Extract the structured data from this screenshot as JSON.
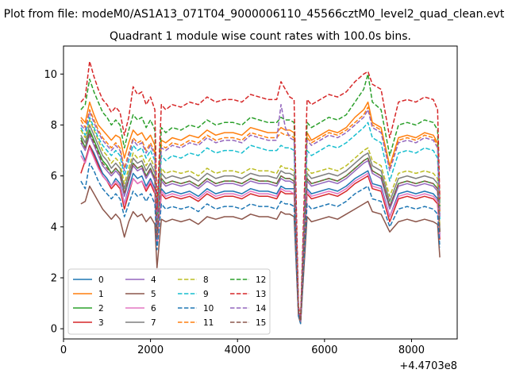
{
  "chart_data": {
    "type": "line",
    "suptitle": "Plot from file: modeM0/AS1A13_071T04_9000006110_45566cztM0_level2_quad_clean.evt",
    "title": "Quadrant 1 module wise count rates with 100.0s bins.",
    "xlabel": "",
    "ylabel": "",
    "x_offset_label": "+4.4703e8",
    "xlim": [
      0,
      9050
    ],
    "ylim": [
      -0.4,
      11.1
    ],
    "xticks": [
      0,
      2000,
      4000,
      6000,
      8000
    ],
    "xtick_labels": [
      "0",
      "2000",
      "4000",
      "6000",
      "8000"
    ],
    "yticks": [
      0,
      2,
      4,
      6,
      8,
      10
    ],
    "ytick_labels": [
      "0",
      "2",
      "4",
      "6",
      "8",
      "10"
    ],
    "legend_position": "lower-left",
    "legend_columns": 4,
    "x": [
      400,
      500,
      600,
      700,
      800,
      900,
      1000,
      1100,
      1200,
      1300,
      1400,
      1500,
      1600,
      1700,
      1800,
      1900,
      2000,
      2100,
      2150,
      2250,
      2350,
      2500,
      2700,
      2900,
      3100,
      3300,
      3500,
      3700,
      3900,
      4100,
      4300,
      4500,
      4700,
      4900,
      5000,
      5100,
      5200,
      5300,
      5400,
      5450,
      5600,
      5700,
      5900,
      6100,
      6300,
      6500,
      6700,
      6900,
      7000,
      7100,
      7300,
      7500,
      7700,
      7900,
      8100,
      8300,
      8500,
      8600,
      8650
    ],
    "series": [
      {
        "name": "0",
        "color": "#1f77b4",
        "dash": "solid",
        "values": [
          7.0,
          6.6,
          7.2,
          6.9,
          6.5,
          6.1,
          5.9,
          5.6,
          5.9,
          5.7,
          4.9,
          5.5,
          6.1,
          5.9,
          6.0,
          5.6,
          5.9,
          5.5,
          3.4,
          5.5,
          5.3,
          5.4,
          5.3,
          5.4,
          5.2,
          5.5,
          5.3,
          5.4,
          5.4,
          5.3,
          5.5,
          5.4,
          5.4,
          5.3,
          5.6,
          5.5,
          5.5,
          5.5,
          0.6,
          0.3,
          5.5,
          5.3,
          5.4,
          5.5,
          5.4,
          5.6,
          5.9,
          6.1,
          6.2,
          5.7,
          5.6,
          4.4,
          5.3,
          5.4,
          5.3,
          5.4,
          5.3,
          5.1,
          3.6
        ]
      },
      {
        "name": "1",
        "color": "#ff7f0e",
        "dash": "solid",
        "values": [
          8.3,
          8.1,
          8.9,
          8.4,
          8.0,
          7.8,
          7.6,
          7.4,
          7.6,
          7.5,
          6.7,
          7.3,
          7.8,
          7.6,
          7.7,
          7.4,
          7.6,
          7.2,
          3.8,
          7.4,
          7.3,
          7.5,
          7.4,
          7.6,
          7.5,
          7.8,
          7.6,
          7.7,
          7.7,
          7.6,
          7.9,
          7.8,
          7.7,
          7.7,
          7.9,
          7.8,
          7.8,
          7.7,
          0.7,
          0.3,
          7.7,
          7.4,
          7.6,
          7.8,
          7.7,
          7.9,
          8.3,
          8.6,
          8.9,
          8.1,
          7.9,
          6.4,
          7.5,
          7.6,
          7.5,
          7.7,
          7.6,
          7.3,
          4.6
        ]
      },
      {
        "name": "2",
        "color": "#2ca02c",
        "dash": "solid",
        "values": [
          7.5,
          7.1,
          7.8,
          7.4,
          7.0,
          6.6,
          6.4,
          6.1,
          6.3,
          6.1,
          5.3,
          5.9,
          6.5,
          6.3,
          6.4,
          6.0,
          6.3,
          5.9,
          3.6,
          5.9,
          5.7,
          5.8,
          5.7,
          5.8,
          5.6,
          5.9,
          5.7,
          5.8,
          5.8,
          5.7,
          5.9,
          5.8,
          5.8,
          5.7,
          6.0,
          5.9,
          5.9,
          5.8,
          0.6,
          0.3,
          5.9,
          5.7,
          5.8,
          5.9,
          5.8,
          6.0,
          6.3,
          6.6,
          6.7,
          6.2,
          6.0,
          4.8,
          5.7,
          5.8,
          5.7,
          5.8,
          5.7,
          5.5,
          3.8
        ]
      },
      {
        "name": "3",
        "color": "#d62728",
        "dash": "solid",
        "values": [
          6.1,
          6.6,
          7.2,
          6.8,
          6.4,
          6.0,
          5.8,
          5.5,
          5.7,
          5.5,
          4.7,
          5.3,
          5.9,
          5.7,
          5.8,
          5.4,
          5.7,
          5.3,
          3.3,
          5.3,
          5.1,
          5.2,
          5.1,
          5.2,
          5.0,
          5.3,
          5.1,
          5.2,
          5.2,
          5.1,
          5.3,
          5.2,
          5.2,
          5.1,
          5.4,
          5.3,
          5.3,
          5.3,
          0.6,
          0.3,
          5.3,
          5.1,
          5.2,
          5.3,
          5.2,
          5.4,
          5.7,
          5.9,
          6.0,
          5.5,
          5.4,
          4.2,
          5.1,
          5.2,
          5.1,
          5.2,
          5.1,
          4.9,
          3.5
        ]
      },
      {
        "name": "4",
        "color": "#9467bd",
        "dash": "solid",
        "values": [
          7.3,
          7.0,
          7.6,
          7.2,
          6.8,
          6.4,
          6.2,
          6.0,
          6.2,
          6.0,
          5.2,
          5.8,
          6.4,
          6.2,
          6.3,
          5.9,
          6.2,
          5.8,
          3.5,
          5.8,
          5.6,
          5.7,
          5.6,
          5.7,
          5.5,
          5.8,
          5.6,
          5.7,
          5.7,
          5.6,
          5.8,
          5.7,
          5.7,
          5.6,
          5.9,
          5.8,
          5.8,
          5.7,
          0.6,
          0.3,
          5.8,
          5.6,
          5.7,
          5.8,
          5.7,
          5.9,
          6.2,
          6.5,
          6.6,
          6.1,
          5.9,
          4.7,
          5.6,
          5.7,
          5.6,
          5.7,
          5.6,
          5.4,
          3.7
        ]
      },
      {
        "name": "5",
        "color": "#8c564b",
        "dash": "solid",
        "values": [
          4.9,
          5.0,
          5.6,
          5.3,
          5.0,
          4.7,
          4.5,
          4.3,
          4.5,
          4.3,
          3.6,
          4.2,
          4.6,
          4.4,
          4.5,
          4.2,
          4.4,
          4.1,
          2.4,
          4.3,
          4.2,
          4.3,
          4.2,
          4.3,
          4.1,
          4.4,
          4.3,
          4.4,
          4.4,
          4.3,
          4.5,
          4.4,
          4.4,
          4.3,
          4.6,
          4.5,
          4.5,
          4.4,
          0.5,
          0.2,
          4.4,
          4.2,
          4.3,
          4.4,
          4.3,
          4.5,
          4.7,
          4.9,
          5.0,
          4.6,
          4.5,
          3.8,
          4.2,
          4.3,
          4.2,
          4.3,
          4.2,
          4.1,
          2.8
        ]
      },
      {
        "name": "6",
        "color": "#e377c2",
        "dash": "solid",
        "values": [
          6.8,
          6.5,
          7.1,
          6.7,
          6.3,
          6.0,
          5.8,
          5.6,
          5.8,
          5.6,
          4.9,
          5.4,
          5.9,
          5.7,
          5.8,
          5.5,
          5.8,
          5.4,
          3.4,
          5.4,
          5.2,
          5.3,
          5.2,
          5.3,
          5.1,
          5.4,
          5.2,
          5.3,
          5.3,
          5.2,
          5.4,
          5.3,
          5.3,
          5.2,
          5.5,
          5.4,
          5.4,
          5.3,
          0.6,
          0.3,
          5.4,
          5.2,
          5.3,
          5.4,
          5.3,
          5.5,
          5.8,
          6.0,
          6.1,
          5.6,
          5.5,
          4.4,
          5.2,
          5.3,
          5.2,
          5.3,
          5.2,
          5.0,
          3.6
        ]
      },
      {
        "name": "7",
        "color": "#7f7f7f",
        "dash": "solid",
        "values": [
          7.6,
          7.3,
          8.0,
          7.6,
          7.2,
          6.8,
          6.6,
          6.3,
          6.5,
          6.3,
          5.5,
          6.1,
          6.7,
          6.5,
          6.6,
          6.2,
          6.5,
          6.1,
          3.7,
          6.1,
          5.9,
          6.0,
          5.9,
          6.0,
          5.8,
          6.1,
          5.9,
          6.0,
          6.0,
          5.9,
          6.1,
          6.0,
          6.0,
          5.9,
          6.2,
          6.1,
          6.1,
          6.0,
          0.6,
          0.3,
          6.1,
          5.9,
          6.0,
          6.1,
          6.0,
          6.2,
          6.5,
          6.8,
          6.9,
          6.4,
          6.2,
          5.0,
          5.9,
          6.0,
          5.9,
          6.0,
          5.9,
          5.7,
          3.9
        ]
      },
      {
        "name": "8",
        "color": "#bcbd22",
        "dash": "dashed",
        "values": [
          7.8,
          7.5,
          8.2,
          7.8,
          7.4,
          7.0,
          6.8,
          6.5,
          6.7,
          6.5,
          5.7,
          6.3,
          6.9,
          6.7,
          6.8,
          6.4,
          6.7,
          6.3,
          3.8,
          6.3,
          6.1,
          6.2,
          6.1,
          6.2,
          6.0,
          6.3,
          6.1,
          6.2,
          6.2,
          6.1,
          6.3,
          6.2,
          6.2,
          6.1,
          6.4,
          6.3,
          6.3,
          6.2,
          0.7,
          0.3,
          6.3,
          6.1,
          6.2,
          6.3,
          6.2,
          6.4,
          6.7,
          7.0,
          7.1,
          6.6,
          6.4,
          5.2,
          6.1,
          6.2,
          6.1,
          6.2,
          6.1,
          5.9,
          4.0
        ]
      },
      {
        "name": "9",
        "color": "#17becf",
        "dash": "dashed",
        "values": [
          7.9,
          7.6,
          8.3,
          7.9,
          7.5,
          7.2,
          7.0,
          6.8,
          7.0,
          6.8,
          6.0,
          6.6,
          7.2,
          7.0,
          7.1,
          6.7,
          7.0,
          6.6,
          3.9,
          6.8,
          6.6,
          6.8,
          6.7,
          6.9,
          6.8,
          7.1,
          6.9,
          7.0,
          7.0,
          6.9,
          7.2,
          7.1,
          7.0,
          7.0,
          7.2,
          7.1,
          7.1,
          7.0,
          0.7,
          0.3,
          7.0,
          6.8,
          7.0,
          7.2,
          7.1,
          7.3,
          7.6,
          7.9,
          8.1,
          7.5,
          7.3,
          5.8,
          6.9,
          7.0,
          6.9,
          7.1,
          7.0,
          6.7,
          4.3
        ]
      },
      {
        "name": "10",
        "color": "#1f77b4",
        "dash": "dashed",
        "values": [
          5.8,
          5.5,
          6.5,
          6.2,
          5.8,
          5.5,
          5.3,
          5.1,
          5.3,
          5.1,
          4.4,
          4.9,
          5.4,
          5.2,
          5.3,
          5.0,
          5.3,
          4.9,
          3.1,
          4.9,
          4.7,
          4.8,
          4.7,
          4.8,
          4.6,
          4.9,
          4.7,
          4.8,
          4.8,
          4.7,
          4.9,
          4.8,
          4.8,
          4.7,
          5.0,
          4.9,
          4.9,
          4.8,
          0.5,
          0.2,
          4.9,
          4.7,
          4.8,
          4.9,
          4.8,
          5.0,
          5.3,
          5.5,
          5.6,
          5.1,
          5.0,
          4.0,
          4.7,
          4.8,
          4.7,
          4.8,
          4.7,
          4.5,
          3.2
        ]
      },
      {
        "name": "11",
        "color": "#ff7f0e",
        "dash": "dashed",
        "values": [
          8.2,
          7.9,
          8.6,
          8.2,
          7.8,
          7.5,
          7.3,
          7.1,
          7.3,
          7.1,
          6.3,
          6.9,
          7.5,
          7.3,
          7.4,
          7.0,
          7.3,
          6.9,
          4.0,
          7.2,
          7.1,
          7.3,
          7.2,
          7.4,
          7.3,
          7.6,
          7.4,
          7.5,
          7.5,
          7.4,
          7.7,
          7.6,
          7.5,
          7.5,
          7.7,
          7.6,
          7.6,
          7.5,
          0.7,
          0.3,
          7.5,
          7.3,
          7.5,
          7.7,
          7.6,
          7.8,
          8.1,
          8.4,
          8.7,
          8.0,
          7.8,
          6.3,
          7.4,
          7.5,
          7.4,
          7.6,
          7.5,
          7.2,
          4.5
        ]
      },
      {
        "name": "12",
        "color": "#2ca02c",
        "dash": "dashed",
        "values": [
          8.6,
          8.8,
          9.8,
          9.3,
          8.9,
          8.5,
          8.3,
          8.0,
          8.2,
          8.0,
          7.1,
          7.8,
          8.4,
          8.2,
          8.3,
          7.9,
          8.2,
          7.8,
          4.3,
          7.9,
          7.7,
          7.9,
          7.8,
          8.0,
          7.9,
          8.2,
          8.0,
          8.1,
          8.1,
          8.0,
          8.3,
          8.2,
          8.1,
          8.1,
          8.3,
          8.2,
          8.2,
          8.1,
          0.8,
          0.4,
          8.1,
          7.9,
          8.1,
          8.3,
          8.2,
          8.4,
          8.9,
          9.4,
          10.0,
          8.9,
          8.6,
          6.8,
          8.0,
          8.1,
          8.0,
          8.2,
          8.1,
          7.8,
          4.8
        ]
      },
      {
        "name": "13",
        "color": "#d62728",
        "dash": "dashed",
        "values": [
          8.9,
          9.1,
          10.5,
          9.9,
          9.4,
          9.0,
          8.8,
          8.5,
          8.7,
          8.5,
          7.6,
          8.3,
          9.5,
          9.2,
          9.3,
          8.8,
          9.1,
          8.6,
          4.6,
          8.8,
          8.6,
          8.8,
          8.7,
          8.9,
          8.8,
          9.1,
          8.9,
          9.0,
          9.0,
          8.9,
          9.2,
          9.1,
          9.0,
          9.0,
          9.7,
          9.4,
          9.1,
          9.0,
          0.9,
          0.4,
          9.0,
          8.8,
          9.0,
          9.2,
          9.1,
          9.3,
          9.7,
          10.0,
          10.1,
          9.6,
          9.4,
          7.5,
          8.9,
          9.0,
          8.9,
          9.1,
          9.0,
          8.6,
          5.1
        ]
      },
      {
        "name": "14",
        "color": "#9467bd",
        "dash": "dashed",
        "values": [
          8.0,
          7.8,
          8.5,
          8.1,
          7.7,
          7.4,
          7.2,
          7.0,
          7.2,
          7.0,
          6.2,
          6.8,
          7.4,
          7.2,
          7.3,
          6.9,
          7.2,
          6.8,
          3.9,
          7.1,
          7.0,
          7.2,
          7.1,
          7.3,
          7.2,
          7.5,
          7.3,
          7.4,
          7.4,
          7.3,
          7.6,
          7.5,
          7.4,
          7.4,
          8.8,
          7.9,
          7.5,
          7.4,
          0.7,
          0.3,
          7.4,
          7.2,
          7.4,
          7.6,
          7.5,
          7.7,
          8.0,
          8.3,
          8.6,
          7.9,
          7.7,
          6.2,
          7.3,
          7.4,
          7.3,
          7.5,
          7.4,
          7.1,
          4.4
        ]
      },
      {
        "name": "15",
        "color": "#8c564b",
        "dash": "dashed",
        "values": [
          7.4,
          7.1,
          7.7,
          7.3,
          6.9,
          6.5,
          6.3,
          6.1,
          6.3,
          6.1,
          5.3,
          5.9,
          6.5,
          6.3,
          6.4,
          6.0,
          6.3,
          5.9,
          3.6,
          5.9,
          5.7,
          5.8,
          5.7,
          5.8,
          5.6,
          5.9,
          5.7,
          5.8,
          5.8,
          5.7,
          5.9,
          5.8,
          5.8,
          5.7,
          6.0,
          5.9,
          5.9,
          5.8,
          0.6,
          0.3,
          5.9,
          5.7,
          5.8,
          5.9,
          5.8,
          6.0,
          6.3,
          6.6,
          6.7,
          6.2,
          6.0,
          4.8,
          5.7,
          5.8,
          5.7,
          5.8,
          5.7,
          5.5,
          3.8
        ]
      }
    ]
  }
}
